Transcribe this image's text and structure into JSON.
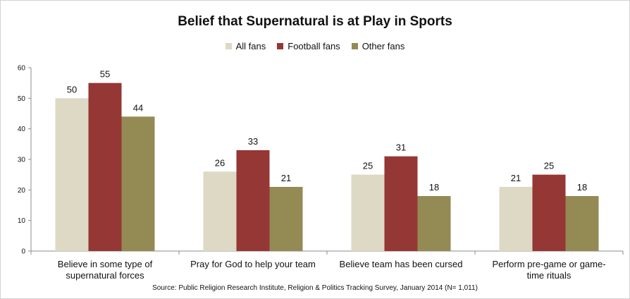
{
  "chart_data": {
    "type": "bar",
    "title": "Belief that Supernatural is at Play in Sports",
    "categories": [
      [
        "Believe in some type of",
        "supernatural forces"
      ],
      [
        "Pray for God to help your team"
      ],
      [
        "Believe team has been cursed"
      ],
      [
        "Perform pre-game or game-",
        "time rituals"
      ]
    ],
    "series": [
      {
        "name": "All fans",
        "color": "#ddd9c4",
        "values": [
          50,
          26,
          25,
          21
        ]
      },
      {
        "name": "Football fans",
        "color": "#953735",
        "values": [
          55,
          33,
          31,
          25
        ]
      },
      {
        "name": "Other fans",
        "color": "#948a54",
        "values": [
          44,
          21,
          18,
          18
        ]
      }
    ],
    "ylim": [
      0,
      60
    ],
    "yticks": [
      0,
      10,
      20,
      30,
      40,
      50,
      60
    ],
    "legend_position": "top",
    "grid": false,
    "source": "Source: Public Religion Research Institute, Religion & Politics Tracking Survey, January 2014 (N= 1,011)"
  }
}
